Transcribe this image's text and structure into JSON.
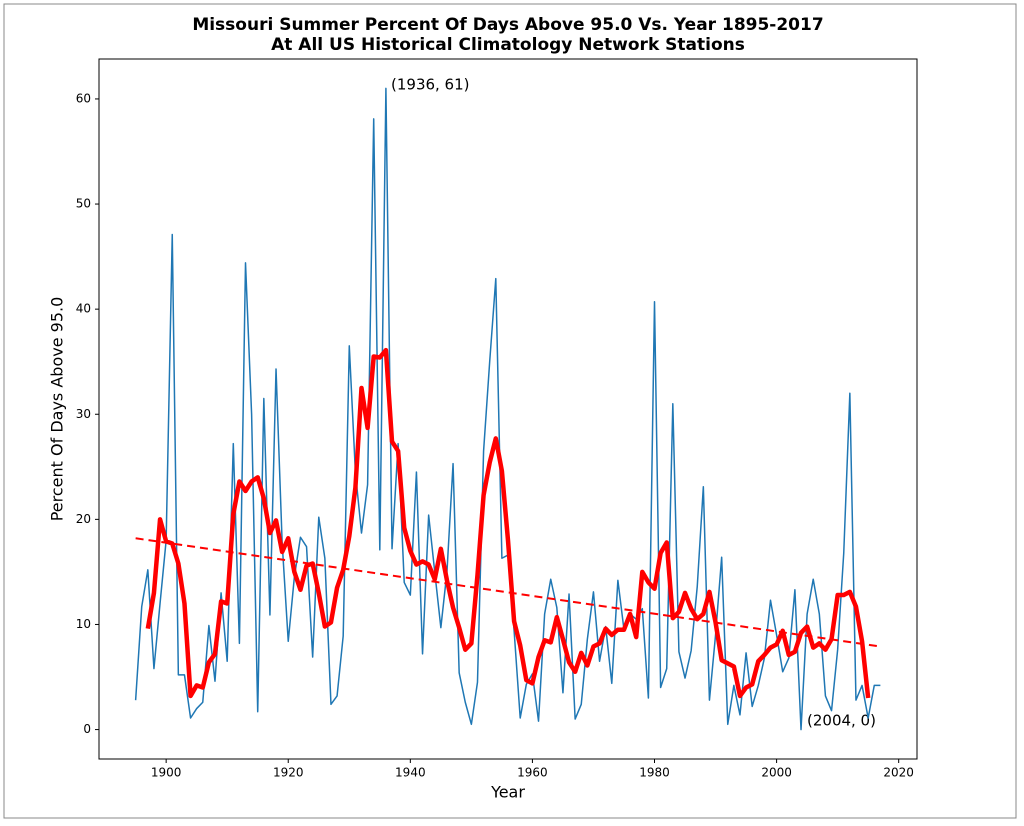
{
  "chart_data": {
    "type": "line",
    "title": "Missouri Summer Percent Of Days Above 95.0 Vs. Year 1895-2017",
    "subtitle": "At All US Historical Climatology Network Stations",
    "x_label": "Year",
    "y_label": "Percent Of Days Above 95.0",
    "annotations": [
      "(1936, 61)",
      "(2004, 0)"
    ],
    "xlim": [
      1889,
      2023
    ],
    "ylim": [
      -2.8,
      63.8
    ],
    "xticks": [
      1900,
      1920,
      1940,
      1960,
      1980,
      2000,
      2020
    ],
    "yticks": [
      0,
      10,
      20,
      30,
      40,
      50,
      60
    ],
    "series": [
      {
        "color": "#1f77b4",
        "linestyle": "solid",
        "x": [
          1895,
          1896,
          1897,
          1898,
          1899,
          1900,
          1901,
          1902,
          1903,
          1904,
          1905,
          1906,
          1907,
          1908,
          1909,
          1910,
          1911,
          1912,
          1913,
          1914,
          1915,
          1916,
          1917,
          1918,
          1919,
          1920,
          1921,
          1922,
          1923,
          1924,
          1925,
          1926,
          1927,
          1928,
          1929,
          1930,
          1931,
          1932,
          1933,
          1934,
          1935,
          1936,
          1937,
          1938,
          1939,
          1940,
          1941,
          1942,
          1943,
          1944,
          1945,
          1946,
          1947,
          1948,
          1949,
          1950,
          1951,
          1952,
          1953,
          1954,
          1955,
          1956,
          1957,
          1958,
          1959,
          1960,
          1961,
          1962,
          1963,
          1964,
          1965,
          1966,
          1967,
          1968,
          1969,
          1970,
          1971,
          1972,
          1973,
          1974,
          1975,
          1976,
          1977,
          1978,
          1979,
          1980,
          1981,
          1982,
          1983,
          1984,
          1985,
          1986,
          1987,
          1988,
          1989,
          1990,
          1991,
          1992,
          1993,
          1994,
          1995,
          1996,
          1997,
          1998,
          1999,
          2000,
          2001,
          2002,
          2003,
          2004,
          2005,
          2006,
          2007,
          2008,
          2009,
          2010,
          2011,
          2012,
          2013,
          2014,
          2015,
          2016,
          2017
        ],
        "values": [
          2.8,
          11.7,
          15.2,
          5.8,
          12,
          18,
          47.1,
          5.2,
          5.2,
          1.1,
          2,
          2.6,
          9.9,
          4.6,
          13,
          6.5,
          27.2,
          8.2,
          44.4,
          30,
          1.7,
          31.5,
          10.9,
          34.3,
          17.8,
          8.4,
          14.5,
          18.3,
          17.4,
          6.9,
          20.2,
          16.3,
          2.4,
          3.2,
          8.9,
          36.5,
          24.5,
          18.7,
          23.3,
          58.1,
          17.1,
          61,
          17.2,
          27.2,
          14,
          12.8,
          24.5,
          7.2,
          20.4,
          15,
          9.7,
          15,
          25.3,
          5.4,
          2.6,
          0.5,
          4.5,
          26.5,
          35,
          42.9,
          16.3,
          16.6,
          9.4,
          1.1,
          4.3,
          5.3,
          0.8,
          11,
          14.3,
          11.6,
          3.5,
          12.9,
          1,
          2.4,
          8.6,
          13.1,
          6.5,
          9.8,
          4.4,
          14.2,
          9.5,
          11,
          10.5,
          11.5,
          3,
          40.7,
          4,
          5.8,
          31,
          7.4,
          4.9,
          7.5,
          13.6,
          23.1,
          2.8,
          9,
          16.4,
          0.5,
          4.2,
          1.4,
          7.3,
          2.2,
          4.2,
          6.8,
          12.3,
          9,
          5.5,
          6.8,
          13.3,
          0,
          11,
          14.3,
          11,
          3.2,
          1.8,
          7.6,
          16.8,
          32,
          2.8,
          4.2,
          1.1,
          4.2,
          4.2
        ]
      },
      {
        "color": "#ff0000",
        "linestyle": "solid",
        "x": [
          1897,
          1898,
          1899,
          1900,
          1901,
          1902,
          1903,
          1904,
          1905,
          1906,
          1907,
          1908,
          1909,
          1910,
          1911,
          1912,
          1913,
          1914,
          1915,
          1916,
          1917,
          1918,
          1919,
          1920,
          1921,
          1922,
          1923,
          1924,
          1925,
          1926,
          1927,
          1928,
          1929,
          1930,
          1931,
          1932,
          1933,
          1934,
          1935,
          1936,
          1937,
          1938,
          1939,
          1940,
          1941,
          1942,
          1943,
          1944,
          1945,
          1946,
          1947,
          1948,
          1949,
          1950,
          1951,
          1952,
          1953,
          1954,
          1955,
          1956,
          1957,
          1958,
          1959,
          1960,
          1961,
          1962,
          1963,
          1964,
          1965,
          1966,
          1967,
          1968,
          1969,
          1970,
          1971,
          1972,
          1973,
          1974,
          1975,
          1976,
          1977,
          1978,
          1979,
          1980,
          1981,
          1982,
          1983,
          1984,
          1985,
          1986,
          1987,
          1988,
          1989,
          1990,
          1991,
          1992,
          1993,
          1994,
          1995,
          1996,
          1997,
          1998,
          1999,
          2000,
          2001,
          2002,
          2003,
          2004,
          2005,
          2006,
          2007,
          2008,
          2009,
          2010,
          2011,
          2012,
          2013,
          2014,
          2015
        ],
        "values": [
          9.6,
          13,
          20,
          17.9,
          17.7,
          15.8,
          12,
          3.2,
          4.2,
          4,
          6.4,
          7.2,
          12.2,
          12,
          20.5,
          23.6,
          22.7,
          23.6,
          24,
          22,
          18.7,
          19.9,
          16.9,
          18.2,
          15,
          13.3,
          15.6,
          15.8,
          13,
          9.8,
          10.2,
          13.5,
          15.2,
          18.4,
          23,
          32.5,
          28.7,
          35.5,
          35.4,
          36.1,
          27.4,
          26.5,
          19.2,
          17,
          15.7,
          16,
          15.7,
          14.3,
          17.2,
          14.2,
          11.6,
          9.7,
          7.6,
          8.2,
          14.7,
          22.3,
          25.4,
          27.7,
          24.6,
          18,
          10.3,
          8,
          4.7,
          4.4,
          6.9,
          8.5,
          8.3,
          10.7,
          8.6,
          6.4,
          5.5,
          7.3,
          6.1,
          7.9,
          8.2,
          9.6,
          9,
          9.5,
          9.5,
          11,
          8.8,
          15,
          14,
          13.4,
          16.8,
          17.8,
          10.6,
          11.2,
          13,
          11.5,
          10.5,
          11,
          13.1,
          10.2,
          6.6,
          6.3,
          6,
          3.2,
          4,
          4.3,
          6.5,
          7.1,
          7.8,
          8.1,
          9.4,
          7.1,
          7.4,
          9.2,
          9.8,
          7.8,
          8.2,
          7.6,
          8.6,
          12.8,
          12.8,
          13.1,
          11.7,
          8.4,
          3
        ]
      },
      {
        "color": "#ff0000",
        "linestyle": "dashed",
        "x": [
          1895,
          2017
        ],
        "values": [
          18.2,
          7.9
        ]
      }
    ]
  }
}
